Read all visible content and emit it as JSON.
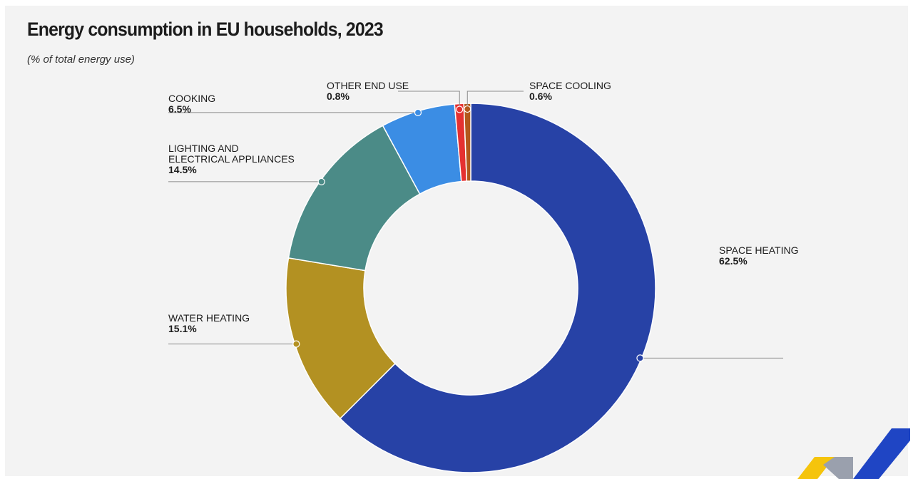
{
  "title": "Energy consumption in EU households, 2023",
  "subtitle": "(% of total energy use)",
  "colors": {
    "background": "#f3f3f3",
    "space_heating": "#2742a6",
    "water_heating": "#b39122",
    "lighting": "#4b8b87",
    "cooking": "#3b8de4",
    "other": "#e53131",
    "cooling": "#b3581c",
    "logo_blue": "#1f45c4",
    "logo_yellow": "#f5c40c",
    "logo_grey": "#9aa0ad"
  },
  "chart_data": {
    "type": "pie",
    "title": "Energy consumption in EU households, 2023",
    "subtitle": "(% of total energy use)",
    "donut": true,
    "slices": [
      {
        "label_lines": [
          "SPACE HEATING"
        ],
        "value": 62.5,
        "value_label": "62.5%",
        "color": "#2742a6"
      },
      {
        "label_lines": [
          "WATER HEATING"
        ],
        "value": 15.1,
        "value_label": "15.1%",
        "color": "#b39122"
      },
      {
        "label_lines": [
          "LIGHTING AND",
          "ELECTRICAL APPLIANCES"
        ],
        "value": 14.5,
        "value_label": "14.5%",
        "color": "#4b8b87"
      },
      {
        "label_lines": [
          "COOKING"
        ],
        "value": 6.5,
        "value_label": "6.5%",
        "color": "#3b8de4"
      },
      {
        "label_lines": [
          "OTHER END USE"
        ],
        "value": 0.8,
        "value_label": "0.8%",
        "color": "#e53131"
      },
      {
        "label_lines": [
          "SPACE COOLING"
        ],
        "value": 0.6,
        "value_label": "0.6%",
        "color": "#b3581c"
      }
    ]
  }
}
